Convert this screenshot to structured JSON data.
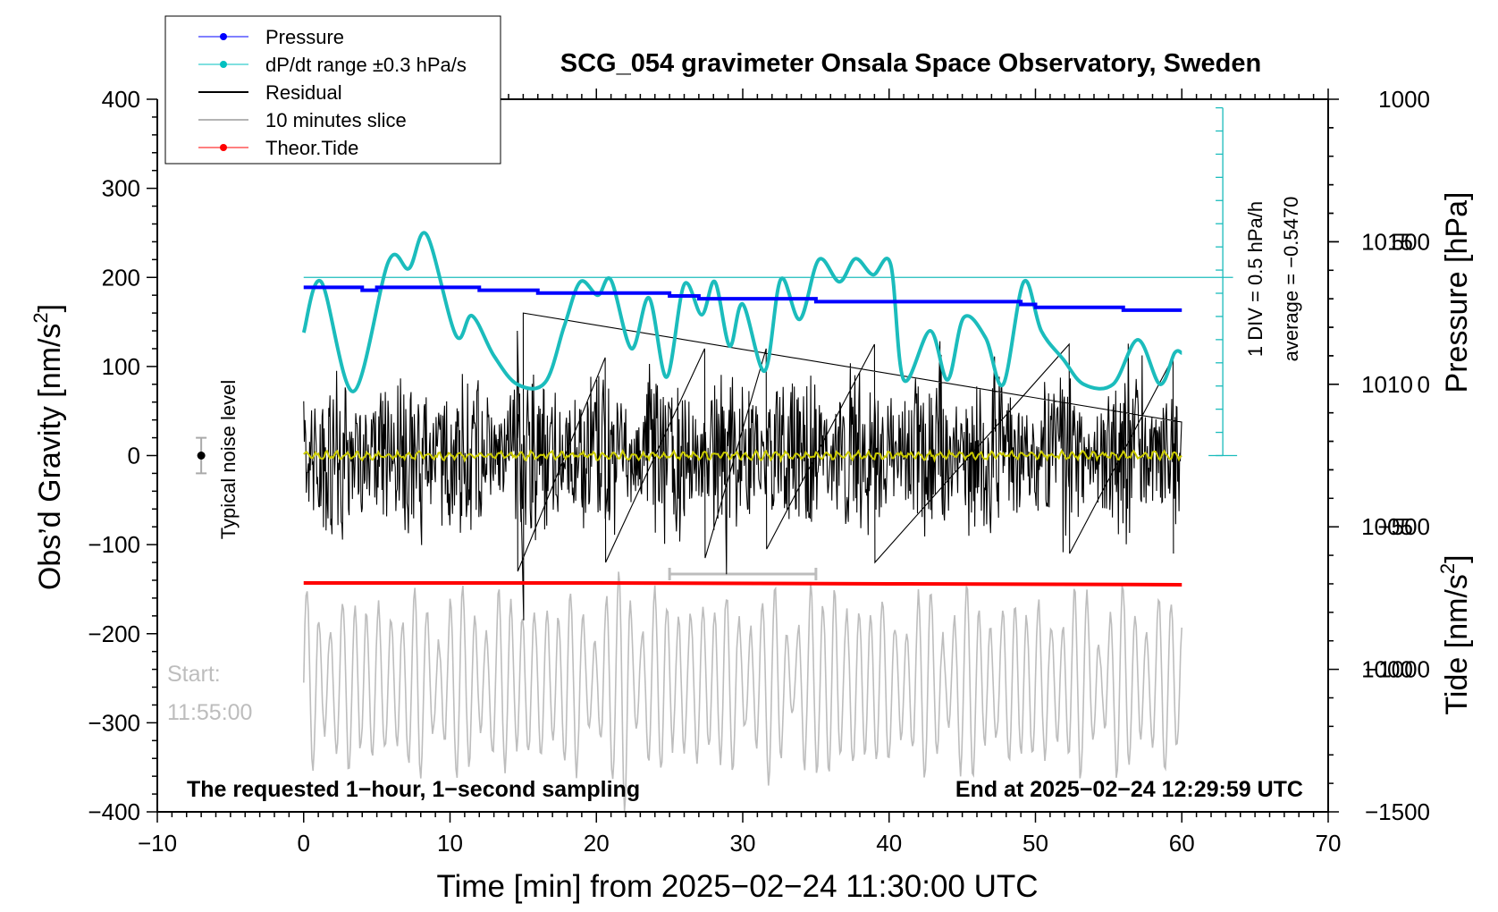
{
  "chart_data": {
    "type": "line",
    "title": "SCG_054 gravimeter Onsala Space Observatory, Sweden",
    "xlabel": "Time [min] from 2025−02−24 11:30:00 UTC",
    "ylabel": "Obs’d Gravity [nm/s",
    "ylabel_sup": "2",
    "ylabel_end": "]",
    "y2label": "Pressure [hPa]",
    "y3label": "Tide [nm/s",
    "y3label_sup": "2",
    "y3label_end": "]",
    "xlim": [
      -10,
      70
    ],
    "ylim": [
      -400,
      400
    ],
    "pressure_lim": [
      995,
      1020
    ],
    "tide_lim": [
      -1500,
      1000
    ],
    "xticks": [
      "−10",
      "0",
      "10",
      "20",
      "30",
      "40",
      "50",
      "60",
      "70"
    ],
    "yticks": [
      "400",
      "300",
      "200",
      "100",
      "0",
      "−100",
      "−200",
      "−300",
      "−400"
    ],
    "pressure_ticks": [
      "1015",
      "1010",
      "1005",
      "1000"
    ],
    "tide_ticks": [
      "1000",
      "500",
      "0",
      "−500",
      "−1000",
      "−1500"
    ],
    "legend_position": "top-left",
    "legend": [
      {
        "label": "Pressure",
        "color": "#0000ff",
        "marker": true
      },
      {
        "label": "dP/dt range ±0.3 hPa/s",
        "color": "#00c0c0",
        "marker": true
      },
      {
        "label": "Residual",
        "color": "#000000",
        "marker": false
      },
      {
        "label": "10 minutes slice",
        "color": "#b4b4b4",
        "marker": false
      },
      {
        "label": "Theor.Tide",
        "color": "#ff0000",
        "marker": true
      }
    ],
    "colors": {
      "pressure": "#0000ff",
      "dpdt": "#1bbcbc",
      "residual": "#000000",
      "smoothed": "#cccc00",
      "slice": "#bdbdbd",
      "tide": "#ff0000"
    },
    "pressure_series": {
      "x": [
        0,
        4,
        5,
        12,
        16,
        25,
        27,
        35,
        40,
        44,
        49,
        50,
        55,
        56,
        58,
        60
      ],
      "y": [
        1013.4,
        1013.3,
        1013.4,
        1013.3,
        1013.2,
        1013.1,
        1013.0,
        1012.9,
        1012.9,
        1012.9,
        1012.8,
        1012.7,
        1012.7,
        1012.6,
        1012.6,
        1012.6
      ]
    },
    "dpdt_series": {
      "x": [
        0,
        1.2,
        3.4,
        5.8,
        7.2,
        8.4,
        10.4,
        11.5,
        13.0,
        14.6,
        16.5,
        17.8,
        18.9,
        20.1,
        21.0,
        22.4,
        23.6,
        24.8,
        26.0,
        27.2,
        28.1,
        29.1,
        30.0,
        31.5,
        32.6,
        33.9,
        35.2,
        36.6,
        37.7,
        38.9,
        40.1,
        41.0,
        42.8,
        44.0,
        45.1,
        46.6,
        47.8,
        49.2,
        50.4,
        51.9,
        53.3,
        55.3,
        57.0,
        58.5,
        59.5,
        60.0
      ],
      "y": [
        138,
        195,
        72,
        218,
        210,
        248,
        135,
        157,
        112,
        80,
        82,
        145,
        195,
        180,
        197,
        120,
        177,
        88,
        192,
        158,
        195,
        123,
        170,
        95,
        198,
        153,
        220,
        195,
        221,
        203,
        215,
        85,
        140,
        85,
        155,
        132,
        80,
        195,
        140,
        108,
        80,
        80,
        130,
        80,
        115,
        115
      ]
    },
    "dpdt_reference_line": 200,
    "residual_envelope": 60,
    "residual_spikes": [
      {
        "x": 15.0,
        "y": 160,
        "y2": -185
      },
      {
        "x": 14.6,
        "y": 140,
        "y2": -130
      },
      {
        "x": 20.6,
        "y": 110,
        "y2": -120
      },
      {
        "x": 27.4,
        "y": 120,
        "y2": -115
      },
      {
        "x": 31.6,
        "y": 120,
        "y2": -105
      },
      {
        "x": 39.0,
        "y": 125,
        "y2": -120
      },
      {
        "x": 52.3,
        "y": 125,
        "y2": -110
      },
      {
        "x": 59.4,
        "y": 110,
        "y2": -110
      }
    ],
    "tide_series": {
      "x": [
        0,
        20,
        40,
        60
      ],
      "y": [
        -143,
        -143,
        -144,
        -145
      ]
    },
    "slice_bracket": {
      "x0": 25,
      "x1": 35,
      "y": -133
    },
    "slice_series": {
      "center": -255,
      "amplitude": 85,
      "peaks": [
        {
          "x": 21.9,
          "y": -110
        },
        {
          "x": 36.1,
          "y": -140
        },
        {
          "x": 7.7,
          "y": -148
        }
      ]
    },
    "noise_level": {
      "x": -7,
      "y": 0,
      "err": 20,
      "label": "Typical noise level"
    },
    "divider_label": "1 DIV = 0.5 hPa/h",
    "average_label": "average = −0.5470",
    "start_label": "Start:",
    "start_time": "11:55:00",
    "footer_left": "The requested 1−hour, 1−second sampling",
    "footer_right": "End at 2025−02−24 12:29:59 UTC"
  }
}
